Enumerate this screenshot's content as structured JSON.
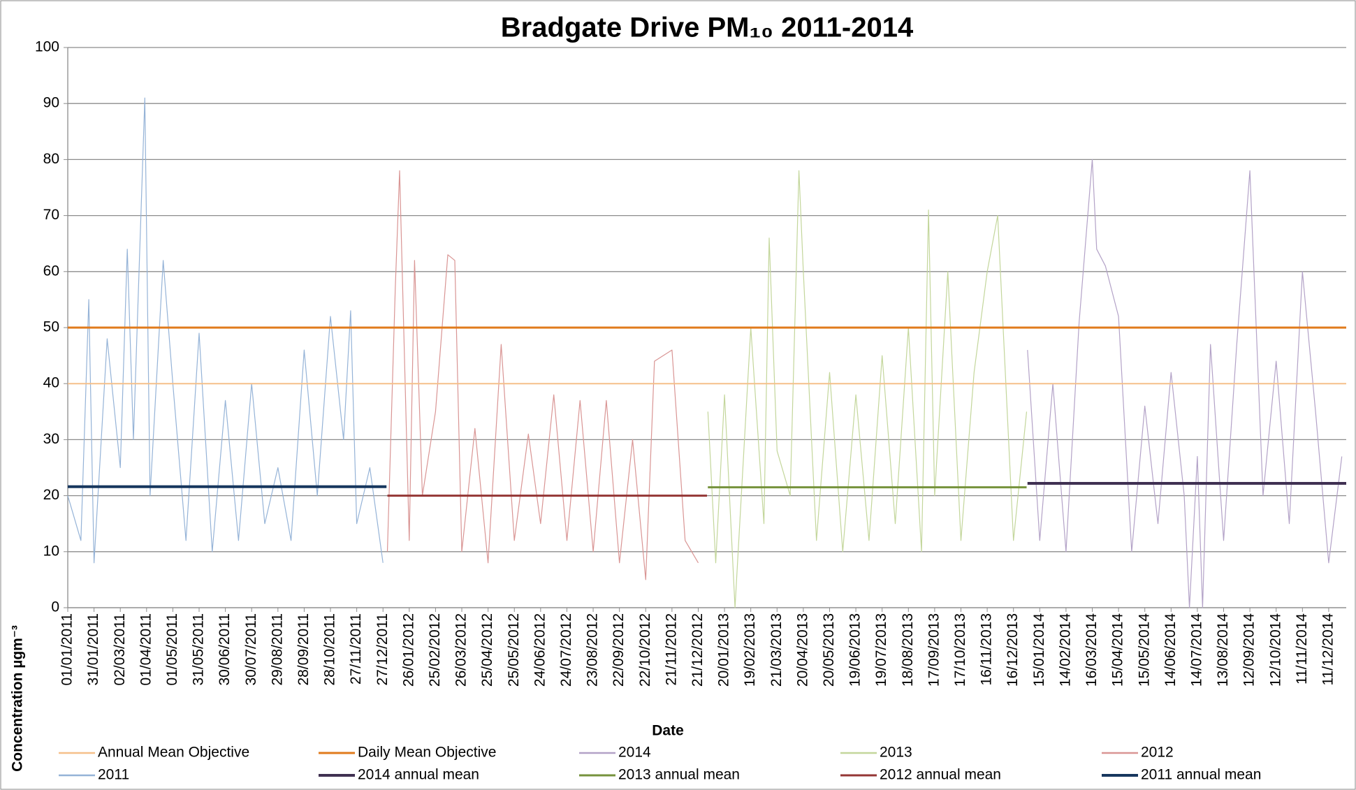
{
  "chart_data": {
    "type": "line",
    "title": "Bradgate Drive PM₁₀ 2011-2014",
    "x_label": "Date",
    "y_label": "Concentration µgm⁻³",
    "xlim": [
      "01/01/2011",
      "31/12/2014"
    ],
    "xticks": [
      "01/01/2011",
      "31/01/2011",
      "02/03/2011",
      "01/04/2011",
      "01/05/2011",
      "31/05/2011",
      "30/06/2011",
      "30/07/2011",
      "29/08/2011",
      "28/09/2011",
      "28/10/2011",
      "27/11/2011",
      "27/12/2011",
      "26/01/2012",
      "25/02/2012",
      "26/03/2012",
      "25/04/2012",
      "25/05/2012",
      "24/06/2012",
      "24/07/2012",
      "23/08/2012",
      "22/09/2012",
      "22/10/2012",
      "21/11/2012",
      "21/12/2012",
      "20/01/2013",
      "19/02/2013",
      "21/03/2013",
      "20/04/2013",
      "20/05/2013",
      "19/06/2013",
      "19/07/2013",
      "18/08/2013",
      "17/09/2013",
      "17/10/2013",
      "16/11/2013",
      "16/12/2013",
      "15/01/2014",
      "14/02/2014",
      "16/03/2014",
      "15/04/2014",
      "15/05/2014",
      "14/06/2014",
      "14/07/2014",
      "13/08/2014",
      "12/09/2014",
      "12/10/2014",
      "11/11/2014",
      "11/12/2014"
    ],
    "ylim": [
      0,
      100
    ],
    "yticks": [
      0,
      10,
      20,
      30,
      40,
      50,
      60,
      70,
      80,
      90,
      100
    ],
    "grid": true,
    "legend": "bottom",
    "series": [
      {
        "name": "Annual Mean Objective",
        "kind": "hline",
        "color": "#f5c08a",
        "width": 2,
        "value": 40
      },
      {
        "name": "Daily Mean Objective",
        "kind": "hline",
        "color": "#e07b1c",
        "width": 3,
        "value": 50
      },
      {
        "name": "2014",
        "kind": "line",
        "color": "#b3a2c7",
        "width": 1.2,
        "x": [
          "01/01/2014",
          "15/01/2014",
          "30/01/2014",
          "14/02/2014",
          "01/03/2014",
          "16/03/2014",
          "21/03/2014",
          "31/03/2014",
          "15/04/2014",
          "30/04/2014",
          "15/05/2014",
          "30/05/2014",
          "14/06/2014",
          "29/06/2014",
          "05/07/2014",
          "14/07/2014",
          "20/07/2014",
          "29/07/2014",
          "13/08/2014",
          "28/08/2014",
          "12/09/2014",
          "27/09/2014",
          "12/10/2014",
          "27/10/2014",
          "11/11/2014",
          "26/11/2014",
          "11/12/2014",
          "26/12/2014"
        ],
        "values": [
          46,
          12,
          40,
          10,
          51,
          80,
          64,
          61,
          52,
          10,
          36,
          15,
          42,
          20,
          0,
          27,
          0,
          47,
          12,
          47,
          78,
          20,
          44,
          15,
          60,
          35,
          8,
          27
        ]
      },
      {
        "name": "2013",
        "kind": "line",
        "color": "#c3d69b",
        "width": 1.2,
        "x": [
          "01/01/2013",
          "10/01/2013",
          "20/01/2013",
          "01/02/2013",
          "19/02/2013",
          "06/03/2013",
          "12/03/2013",
          "21/03/2013",
          "05/04/2013",
          "15/04/2013",
          "20/04/2013",
          "05/05/2013",
          "20/05/2013",
          "04/06/2013",
          "19/06/2013",
          "04/07/2013",
          "19/07/2013",
          "03/08/2013",
          "18/08/2013",
          "02/09/2013",
          "10/09/2013",
          "17/09/2013",
          "02/10/2013",
          "17/10/2013",
          "01/11/2013",
          "16/11/2013",
          "28/11/2013",
          "16/12/2013",
          "31/12/2013"
        ],
        "values": [
          35,
          8,
          38,
          0,
          50,
          15,
          66,
          28,
          20,
          78,
          60,
          12,
          42,
          10,
          38,
          12,
          45,
          15,
          50,
          10,
          71,
          20,
          60,
          12,
          42,
          60,
          70,
          12,
          35
        ]
      },
      {
        "name": "2012",
        "kind": "line",
        "color": "#d99594",
        "width": 1.2,
        "x": [
          "01/01/2012",
          "10/01/2012",
          "15/01/2012",
          "26/01/2012",
          "01/02/2012",
          "10/02/2012",
          "25/02/2012",
          "10/03/2012",
          "18/03/2012",
          "26/03/2012",
          "10/04/2012",
          "25/04/2012",
          "10/05/2012",
          "25/05/2012",
          "10/06/2012",
          "24/06/2012",
          "09/07/2012",
          "24/07/2012",
          "08/08/2012",
          "23/08/2012",
          "07/09/2012",
          "22/09/2012",
          "07/10/2012",
          "22/10/2012",
          "01/11/2012",
          "21/11/2012",
          "06/12/2012",
          "21/12/2012"
        ],
        "values": [
          10,
          57,
          78,
          12,
          62,
          20,
          35,
          63,
          62,
          10,
          32,
          8,
          47,
          12,
          31,
          15,
          38,
          12,
          37,
          10,
          37,
          8,
          30,
          5,
          44,
          46,
          12,
          8
        ]
      },
      {
        "name": "2011",
        "kind": "line",
        "color": "#95b3d7",
        "width": 1.2,
        "x": [
          "01/01/2011",
          "16/01/2011",
          "25/01/2011",
          "31/01/2011",
          "15/02/2011",
          "02/03/2011",
          "10/03/2011",
          "17/03/2011",
          "30/03/2011",
          "05/04/2011",
          "20/04/2011",
          "01/05/2011",
          "16/05/2011",
          "31/05/2011",
          "15/06/2011",
          "30/06/2011",
          "15/07/2011",
          "30/07/2011",
          "14/08/2011",
          "29/08/2011",
          "13/09/2011",
          "28/09/2011",
          "13/10/2011",
          "28/10/2011",
          "12/11/2011",
          "20/11/2011",
          "27/11/2011",
          "12/12/2011",
          "27/12/2011"
        ],
        "values": [
          20,
          12,
          55,
          8,
          48,
          25,
          64,
          30,
          91,
          20,
          62,
          40,
          12,
          49,
          10,
          37,
          12,
          40,
          15,
          25,
          12,
          46,
          20,
          52,
          30,
          53,
          15,
          25,
          8
        ]
      },
      {
        "name": "2014 annual mean",
        "kind": "segment",
        "color": "#403152",
        "width": 4,
        "x": [
          "01/01/2014",
          "31/12/2014"
        ],
        "value": 22.2
      },
      {
        "name": "2013 annual mean",
        "kind": "segment",
        "color": "#76923c",
        "width": 3,
        "x": [
          "01/01/2013",
          "31/12/2013"
        ],
        "value": 21.5
      },
      {
        "name": "2012 annual mean",
        "kind": "segment",
        "color": "#943634",
        "width": 3,
        "x": [
          "01/01/2012",
          "31/12/2012"
        ],
        "value": 20
      },
      {
        "name": "2011 annual mean",
        "kind": "segment",
        "color": "#17375e",
        "width": 4,
        "x": [
          "01/01/2011",
          "31/12/2011"
        ],
        "value": 21.6
      }
    ]
  }
}
